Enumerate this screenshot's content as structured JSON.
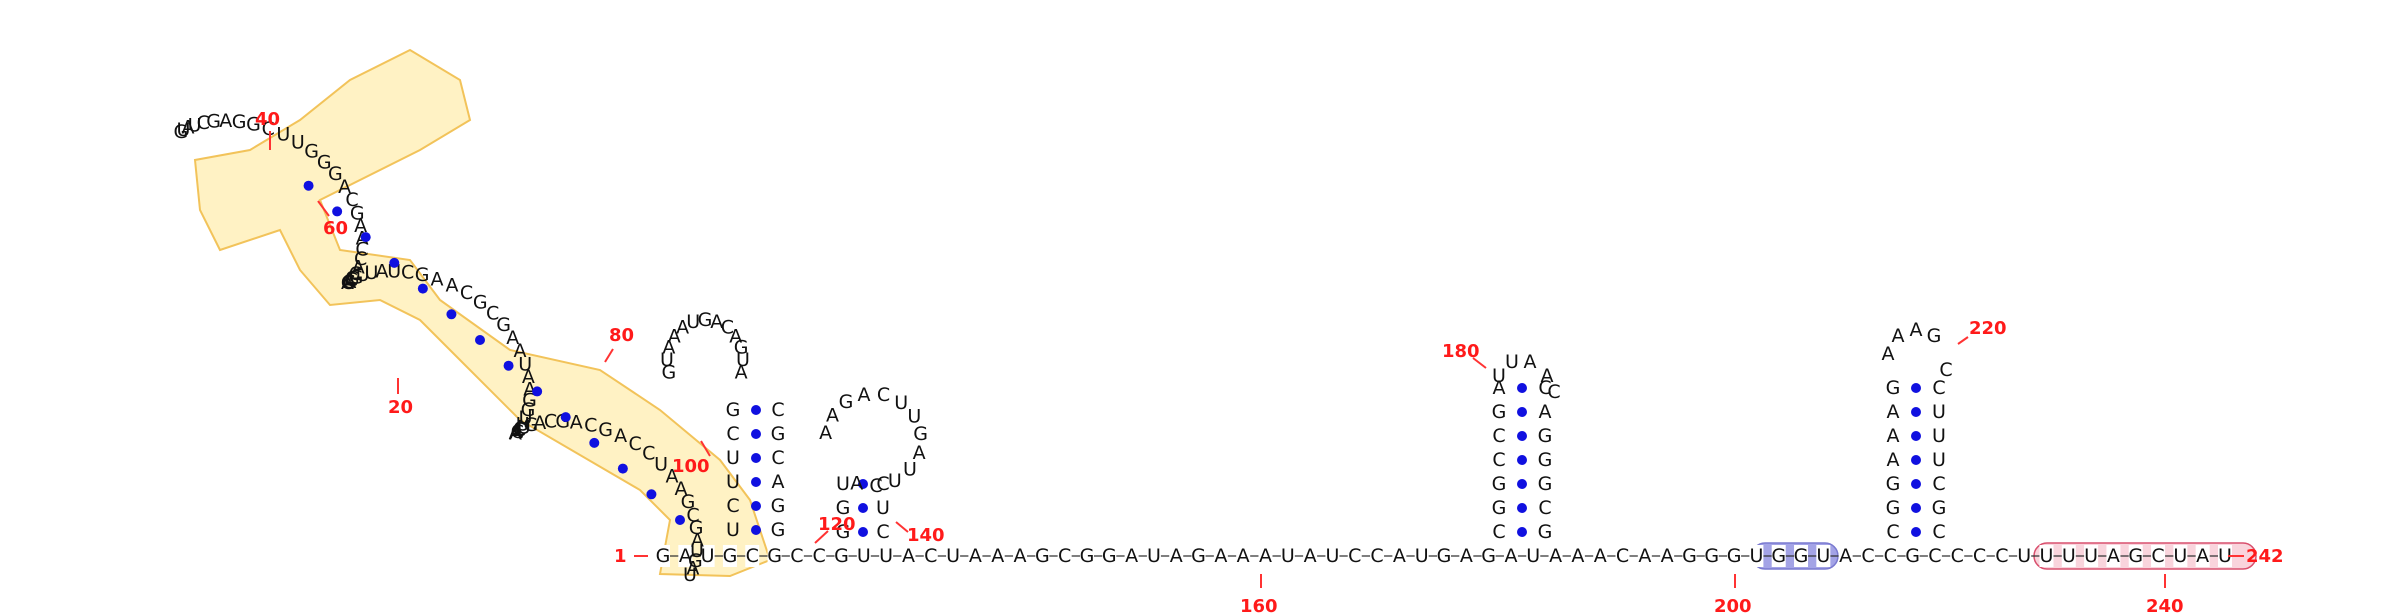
{
  "sequence": "GAUGCGCCGUUACUAAAGCGGAUAGAAAUAUCCAUGAGAUAAACAAGGGUGGUACCGCCCCUUUUAGCUAU",
  "numbers": {
    "n1": "1",
    "n20": "20",
    "n40": "40",
    "n60": "60",
    "n80": "80",
    "n100": "100",
    "n120": "120",
    "n140": "140",
    "n160": "160",
    "n180": "180",
    "n200": "200",
    "n220": "220",
    "n240": "240",
    "n242": "242"
  },
  "colors": {
    "highlight_yellow": "#fff2c4",
    "highlight_yellow_stroke": "#f2c35a",
    "highlight_blue": "#a3a3e6",
    "highlight_pink": "#f9d4dc",
    "highlight_pink_stroke": "#d9506e",
    "pair_dot": "#1010e0",
    "number_red": "#ff1a1a"
  },
  "highlights": [
    {
      "name": "yellow-domain",
      "color": "#fff2c4"
    },
    {
      "name": "blue-segment",
      "nucleotides": "UGGU",
      "color": "#a3a3e6"
    },
    {
      "name": "pink-segment",
      "nucleotides": "UUUUAGCUAU",
      "color": "#f9d4dc"
    }
  ]
}
